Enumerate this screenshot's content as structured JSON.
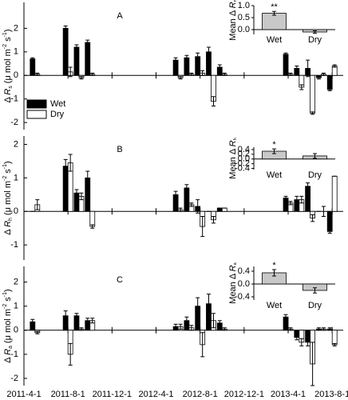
{
  "chart_data": [
    {
      "type": "bar",
      "label": "A",
      "ylabel": [
        {
          "text": "Δ "
        },
        {
          "text": "R",
          "style": "italic"
        },
        {
          "text": "s",
          "shift": "sub"
        },
        {
          "text": " (μ mol m"
        },
        {
          "text": "-2",
          "shift": "sup"
        },
        {
          "text": " s"
        },
        {
          "text": "-1",
          "shift": "sup"
        },
        {
          "text": ")"
        }
      ],
      "x": [
        1,
        4,
        5,
        6,
        14,
        15,
        16,
        17,
        18,
        24,
        25,
        26,
        27,
        28
      ],
      "xlim": [
        0,
        29
      ],
      "xticks": [
        0,
        4,
        8,
        12,
        16,
        20,
        24,
        28
      ],
      "ylim": [
        -2.3,
        3.1
      ],
      "yticks": [
        -2,
        -1,
        0,
        1,
        2
      ],
      "legend": "lower left",
      "series": [
        {
          "name": "Wet",
          "color": "#000000",
          "values": [
            0.7,
            2.0,
            1.2,
            1.4,
            0.65,
            0.75,
            0.8,
            1.0,
            0.35,
            0.9,
            0.3,
            0.3,
            -0.1,
            -0.6
          ],
          "errors": [
            0.05,
            0.1,
            0.1,
            0.1,
            0.1,
            0.1,
            0.15,
            0.2,
            0.1,
            0.05,
            0.1,
            0.35,
            0.05,
            0.05
          ]
        },
        {
          "name": "Dry",
          "color": "#ffffff",
          "values": [
            0.05,
            0.15,
            -0.1,
            0.05,
            -0.1,
            0.05,
            0.1,
            -1.1,
            0.05,
            0.05,
            -0.5,
            -1.6,
            0.05,
            0.4
          ],
          "errors": [
            0.05,
            0.2,
            0.05,
            0.05,
            0.05,
            0.05,
            0.1,
            0.2,
            0.05,
            0.05,
            0.1,
            0.05,
            0.05,
            0.05
          ]
        }
      ]
    },
    {
      "type": "bar",
      "ylabel": [
        {
          "text": "Mean Δ "
        },
        {
          "text": "R",
          "style": "italic"
        },
        {
          "text": "n",
          "shift": "sub"
        }
      ],
      "categories": [
        "Wet",
        "Dry"
      ],
      "values": [
        0.68,
        -0.1
      ],
      "errors": [
        0.08,
        0.05
      ],
      "color": "#c8c8c8",
      "ylim": [
        -0.2,
        1.0
      ],
      "yticks": [
        {
          "value": 0,
          "label": "0.0"
        },
        0.5,
        {
          "value": 1,
          "label": "1.0"
        }
      ],
      "annotations": [
        {
          "text": "**",
          "x": "Wet"
        }
      ]
    },
    {
      "type": "bar",
      "label": "B",
      "ylabel": [
        {
          "text": "Δ "
        },
        {
          "text": "R",
          "style": "italic"
        },
        {
          "text": "h",
          "shift": "sub"
        },
        {
          "text": " (μ mol m"
        },
        {
          "text": "-2",
          "shift": "sup"
        },
        {
          "text": " s"
        },
        {
          "text": "-1",
          "shift": "sup"
        },
        {
          "text": ")"
        }
      ],
      "x": [
        1,
        4,
        5,
        6,
        14,
        15,
        16,
        17,
        18,
        24,
        25,
        26,
        27,
        28
      ],
      "xlim": [
        0,
        29
      ],
      "xticks": [
        0,
        4,
        8,
        12,
        16,
        20,
        24,
        28
      ],
      "ylim": [
        -1.45,
        2.25
      ],
      "yticks": [
        -1,
        0,
        1,
        2
      ],
      "series": [
        {
          "name": "Wet",
          "color": "#000000",
          "values": [
            0,
            1.35,
            0.55,
            1.0,
            0.5,
            0.7,
            0.15,
            0,
            0.1,
            0.4,
            0.35,
            0.75,
            0,
            -0.6
          ],
          "errors": [
            0,
            0.2,
            0.1,
            0.2,
            0.1,
            0.1,
            0.2,
            0,
            0,
            0.05,
            0.1,
            0.1,
            0,
            0.05
          ]
        },
        {
          "name": "Dry",
          "color": "#ffffff",
          "values": [
            0.2,
            1.45,
            0.45,
            -0.45,
            0.05,
            0.2,
            -0.45,
            -0.25,
            0.1,
            0.25,
            0.35,
            -0.2,
            0,
            1.05
          ],
          "errors": [
            0.15,
            0.25,
            0.1,
            0.05,
            0.05,
            0.05,
            0.3,
            0.1,
            0,
            0.05,
            0.1,
            0.1,
            0.15,
            0
          ]
        }
      ]
    },
    {
      "type": "bar",
      "ylabel": [
        {
          "text": "Mean Δ "
        },
        {
          "text": "R",
          "style": "italic"
        },
        {
          "text": "h",
          "shift": "sub"
        }
      ],
      "categories": [
        "Wet",
        "Dry"
      ],
      "values": [
        0.33,
        0.13
      ],
      "errors": [
        0.1,
        0.1
      ],
      "color": "#c8c8c8",
      "ylim": [
        -0.45,
        0.5
      ],
      "yticks": [
        -0.4,
        -0.2,
        {
          "value": 0,
          "label": "0.0"
        },
        0.2,
        0.4
      ],
      "annotations": [
        {
          "text": "*",
          "x": "Wet"
        }
      ]
    },
    {
      "type": "bar",
      "label": "C",
      "ylabel": [
        {
          "text": "Δ "
        },
        {
          "text": "R",
          "style": "italic"
        },
        {
          "text": "a",
          "shift": "sub"
        },
        {
          "text": " (μ mol m"
        },
        {
          "text": "-2",
          "shift": "sup"
        },
        {
          "text": " s"
        },
        {
          "text": "-1",
          "shift": "sup"
        },
        {
          "text": ")"
        }
      ],
      "x": [
        1,
        4,
        5,
        6,
        14,
        15,
        16,
        17,
        18,
        24,
        25,
        26,
        27,
        28
      ],
      "xlim": [
        0,
        29
      ],
      "xticks": [
        {
          "value": 0,
          "label": "2011-4-1"
        },
        {
          "value": 4,
          "label": "2011-8-1"
        },
        {
          "value": 8,
          "label": "2011-12-1"
        },
        {
          "value": 12,
          "label": "2012-4-1"
        },
        {
          "value": 16,
          "label": "2012-8-1"
        },
        {
          "value": 20,
          "label": "2012-12-1"
        },
        {
          "value": 24,
          "label": "2013-4-1"
        },
        {
          "value": 28,
          "label": "2013-8-1"
        }
      ],
      "ylim": [
        -2.3,
        2.65
      ],
      "yticks": [
        -2,
        -1,
        0,
        1,
        2
      ],
      "series": [
        {
          "name": "Wet",
          "color": "#000000",
          "values": [
            0.35,
            0.6,
            0.6,
            0.4,
            0.15,
            0.4,
            1.0,
            1.1,
            0.3,
            0.55,
            -0.3,
            -0.5,
            0.05,
            0.05
          ],
          "errors": [
            0.1,
            0.2,
            0.1,
            0.1,
            0.1,
            0.15,
            0.35,
            0.4,
            0.1,
            0.1,
            0.1,
            0.15,
            0.05,
            0.05
          ]
        },
        {
          "name": "Dry",
          "color": "#ffffff",
          "values": [
            -0.1,
            -1.0,
            0.05,
            0.4,
            0.15,
            0.1,
            -0.6,
            0.4,
            0.05,
            0.05,
            -0.5,
            -1.4,
            0.05,
            -0.6
          ],
          "errors": [
            0.05,
            0.45,
            0.05,
            0.1,
            0.1,
            0.1,
            0.5,
            0.3,
            0.05,
            0.05,
            0.15,
            0.9,
            0.05,
            0.05
          ]
        }
      ]
    },
    {
      "type": "bar",
      "ylabel": [
        {
          "text": "Mean Δ "
        },
        {
          "text": "R",
          "style": "italic"
        },
        {
          "text": "a",
          "shift": "sub"
        }
      ],
      "categories": [
        "Wet",
        "Dry"
      ],
      "values": [
        0.35,
        -0.2
      ],
      "errors": [
        0.1,
        0.08
      ],
      "color": "#c8c8c8",
      "ylim": [
        -0.5,
        0.55
      ],
      "yticks": [
        -0.4,
        {
          "value": 0,
          "label": "0.0"
        },
        0.4
      ],
      "annotations": [
        {
          "text": "*",
          "x": "Wet"
        }
      ]
    }
  ]
}
